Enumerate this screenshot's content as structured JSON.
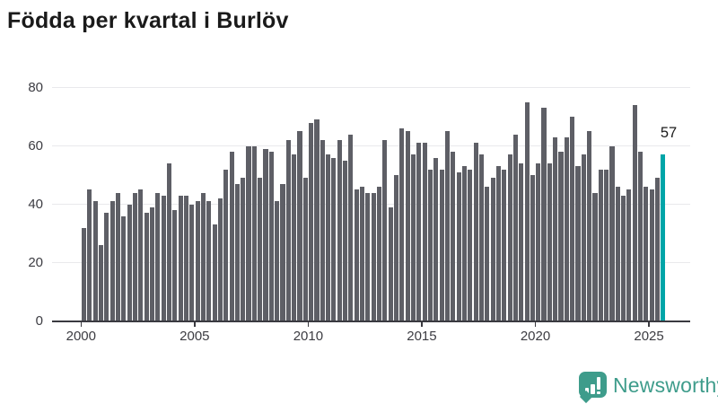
{
  "title": "Födda per kvartal i Burlöv",
  "colors": {
    "bar": "#5e5f66",
    "highlight": "#00a5a8",
    "axis": "#3a3a40",
    "gridline": "#e9e9ec",
    "tick_text": "#3c3c42",
    "title_text": "#1a1a1a",
    "logo_green": "#3e9c8b"
  },
  "chart_data": {
    "type": "bar",
    "title": "Födda per kvartal i Burlöv",
    "x_unit": "quarter",
    "start_year": 2000,
    "start_quarter": 1,
    "values": [
      32,
      45,
      41,
      26,
      37,
      41,
      44,
      36,
      40,
      44,
      45,
      37,
      39,
      44,
      43,
      54,
      38,
      43,
      43,
      40,
      41,
      44,
      41,
      33,
      42,
      52,
      58,
      47,
      49,
      60,
      60,
      49,
      59,
      58,
      41,
      47,
      62,
      57,
      65,
      49,
      68,
      69,
      62,
      57,
      56,
      62,
      55,
      64,
      45,
      46,
      44,
      44,
      46,
      62,
      39,
      50,
      66,
      65,
      57,
      61,
      61,
      52,
      56,
      52,
      65,
      58,
      51,
      53,
      52,
      61,
      57,
      46,
      49,
      53,
      52,
      57,
      64,
      54,
      75,
      50,
      54,
      73,
      54,
      63,
      58,
      63,
      70,
      53,
      57,
      65,
      44,
      52,
      52,
      60,
      46,
      43,
      45,
      74,
      58,
      46,
      45,
      49,
      57
    ],
    "highlight_index": 102,
    "highlight_quarter": "2025 Q3",
    "highlight_value_label": "57",
    "ylim": [
      0,
      84
    ],
    "yticks": [
      0,
      20,
      40,
      60,
      80
    ],
    "xticks": [
      2000,
      2005,
      2010,
      2015,
      2020,
      2025
    ],
    "grid": true,
    "legend": "none"
  },
  "branding": {
    "logo_text": "Newsworthy",
    "logo_icon": "bar-chart-speech-bubble"
  }
}
